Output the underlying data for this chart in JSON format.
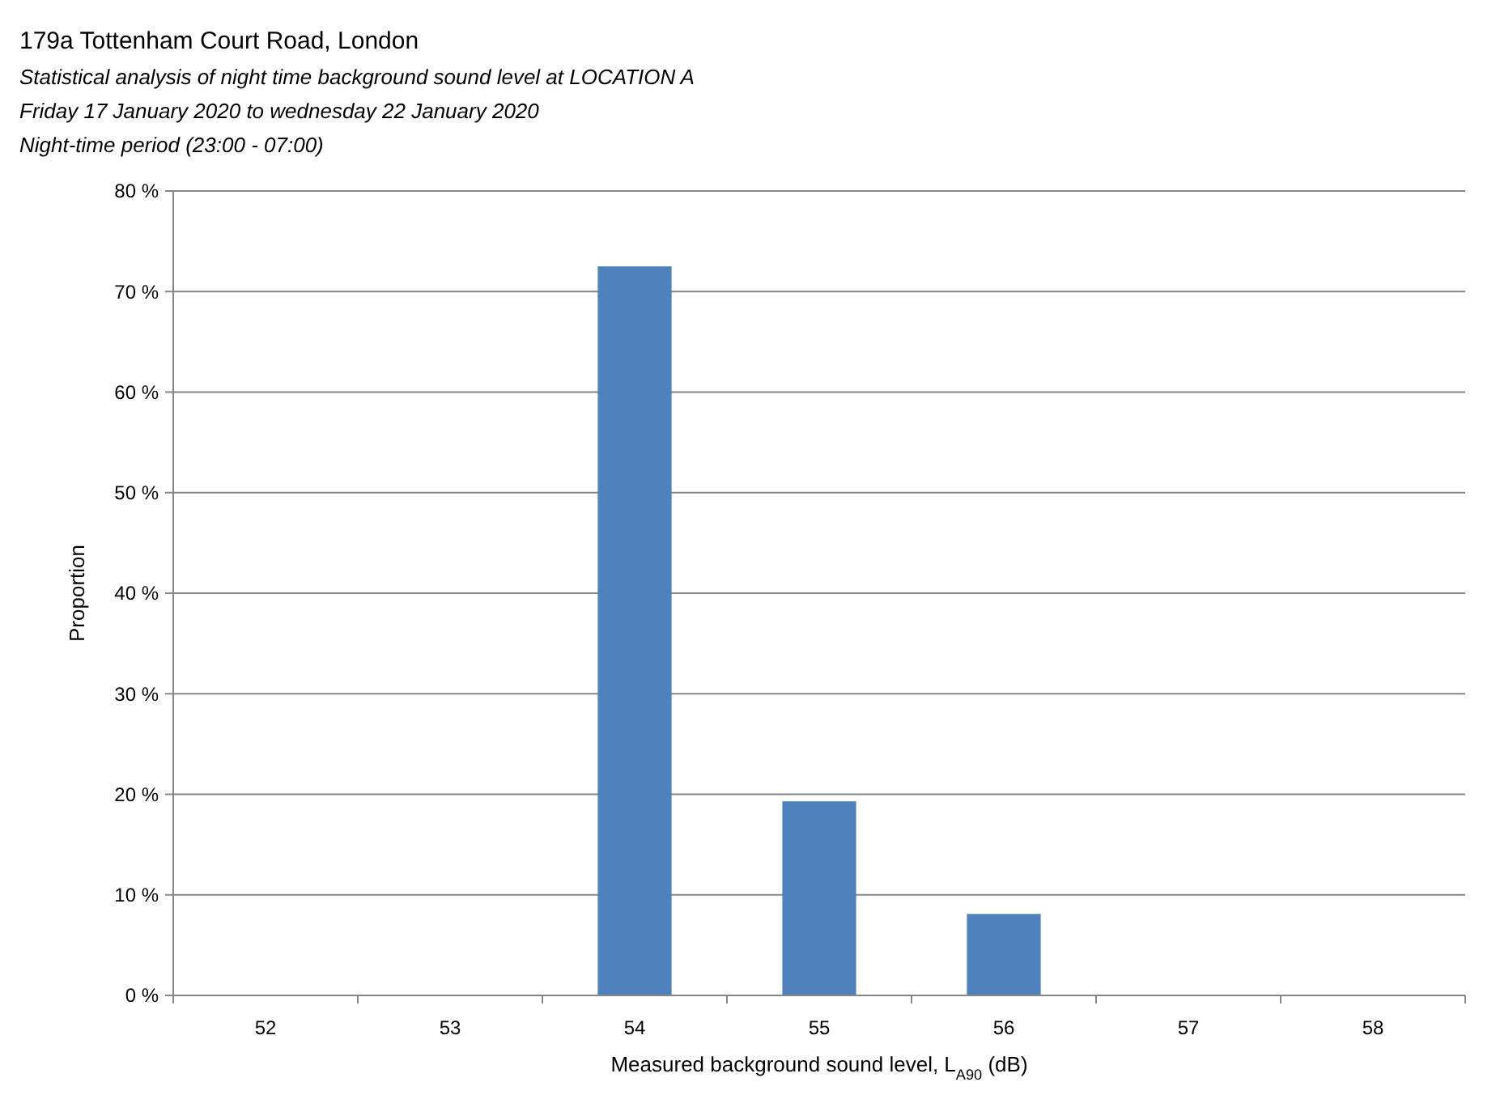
{
  "chart_data": {
    "type": "bar",
    "title": "179a Tottenham Court Road, London",
    "subtitle": "Statistical analysis of night time background sound level at LOCATION A\nFriday 17 January 2020 to wednesday 22 January 2020\nNight-time period (23:00 - 07:00)",
    "xlabel": "Measured background sound level, L$_{A90}$ (dB)",
    "ylabel": "Proportion",
    "categories": [
      "52",
      "53",
      "54",
      "55",
      "56",
      "57",
      "58"
    ],
    "values": [
      0,
      0,
      72.5,
      19.3,
      8.1,
      0,
      0
    ],
    "color": "#4f81bd",
    "ylim": [
      0,
      80
    ],
    "yticks": [
      {
        "value": 0,
        "label": "0 %"
      },
      {
        "value": 10,
        "label": "10 %"
      },
      {
        "value": 20,
        "label": "20 %"
      },
      {
        "value": 30,
        "label": "30 %"
      },
      {
        "value": 40,
        "label": "40 %"
      },
      {
        "value": 50,
        "label": "50 %"
      },
      {
        "value": 60,
        "label": "60 %"
      },
      {
        "value": 70,
        "label": "70 %"
      },
      {
        "value": 80,
        "label": "80 %"
      }
    ],
    "grid": "y"
  }
}
